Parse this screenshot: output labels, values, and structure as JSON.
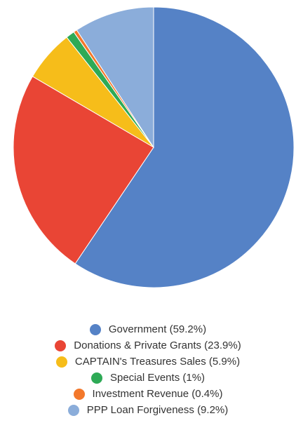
{
  "chart_data": {
    "type": "pie",
    "slices": [
      {
        "label": "Government",
        "value": 59.2,
        "color": "#5582c6"
      },
      {
        "label": "Donations & Private Grants",
        "value": 23.9,
        "color": "#e94535"
      },
      {
        "label": "CAPTAIN's Treasures Sales",
        "value": 5.9,
        "color": "#f6bd1a"
      },
      {
        "label": "Special Events",
        "value": 1,
        "color": "#2eaa56"
      },
      {
        "label": "Investment Revenue",
        "value": 0.4,
        "color": "#f3782b"
      },
      {
        "label": "PPP Loan Forgiveness",
        "value": 9.2,
        "color": "#8badda"
      }
    ],
    "start": "top",
    "direction": "clockwise",
    "legend_position": "bottom"
  },
  "legend": {
    "items": [
      {
        "text": "Government (59.2%)"
      },
      {
        "text": "Donations & Private Grants (23.9%)"
      },
      {
        "text": "CAPTAIN's Treasures Sales (5.9%)"
      },
      {
        "text": "Special Events (1%)"
      },
      {
        "text": "Investment Revenue (0.4%)"
      },
      {
        "text": "PPP Loan Forgiveness (9.2%)"
      }
    ]
  }
}
